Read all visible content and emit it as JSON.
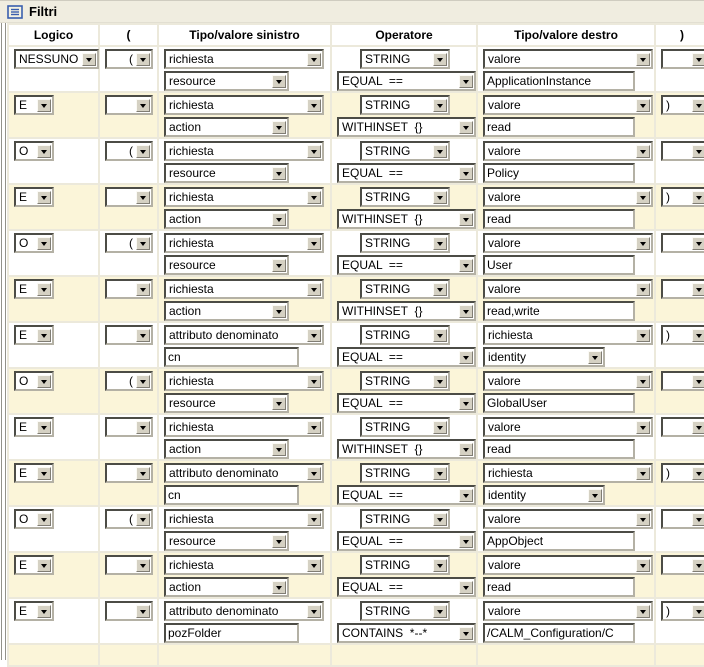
{
  "title": "Filtri",
  "columns": [
    "Logico",
    "(",
    "Tipo/valore sinistro",
    "Operatore",
    "Tipo/valore destro",
    ")"
  ],
  "colors": {
    "row_alternate": "#FBF5D9",
    "titlebar_background": "#F0EDE0",
    "grid_lines": "#ECE9DB",
    "icon_blue": "#3a5fae"
  },
  "icons": {
    "titlebar_icon": "filter-list-icon",
    "dropdown_arrow": "chevron-down-icon"
  },
  "rows": [
    {
      "logico": "NESSUNO",
      "open": "(",
      "left": {
        "type": "richiesta",
        "kind": "dropdown",
        "value": "resource"
      },
      "op": {
        "type": "STRING",
        "operator": "EQUAL  =="
      },
      "right": {
        "type": "valore",
        "kind": "input",
        "value": "ApplicationInstance"
      },
      "close": ""
    },
    {
      "logico": "E",
      "open": "",
      "left": {
        "type": "richiesta",
        "kind": "dropdown",
        "value": "action"
      },
      "op": {
        "type": "STRING",
        "operator": "WITHINSET  {}"
      },
      "right": {
        "type": "valore",
        "kind": "input",
        "value": "read"
      },
      "close": ")"
    },
    {
      "logico": "O",
      "open": "(",
      "left": {
        "type": "richiesta",
        "kind": "dropdown",
        "value": "resource"
      },
      "op": {
        "type": "STRING",
        "operator": "EQUAL  =="
      },
      "right": {
        "type": "valore",
        "kind": "input",
        "value": "Policy"
      },
      "close": ""
    },
    {
      "logico": "E",
      "open": "",
      "left": {
        "type": "richiesta",
        "kind": "dropdown",
        "value": "action"
      },
      "op": {
        "type": "STRING",
        "operator": "WITHINSET  {}"
      },
      "right": {
        "type": "valore",
        "kind": "input",
        "value": "read"
      },
      "close": ")"
    },
    {
      "logico": "O",
      "open": "(",
      "left": {
        "type": "richiesta",
        "kind": "dropdown",
        "value": "resource"
      },
      "op": {
        "type": "STRING",
        "operator": "EQUAL  =="
      },
      "right": {
        "type": "valore",
        "kind": "input",
        "value": "User"
      },
      "close": ""
    },
    {
      "logico": "E",
      "open": "",
      "left": {
        "type": "richiesta",
        "kind": "dropdown",
        "value": "action"
      },
      "op": {
        "type": "STRING",
        "operator": "WITHINSET  {}"
      },
      "right": {
        "type": "valore",
        "kind": "input",
        "value": "read,write"
      },
      "close": ""
    },
    {
      "logico": "E",
      "open": "",
      "left": {
        "type": "attributo denominato",
        "kind": "input",
        "value": "cn"
      },
      "op": {
        "type": "STRING",
        "operator": "EQUAL  =="
      },
      "right": {
        "type": "richiesta",
        "kind": "dropdown",
        "value": "identity"
      },
      "close": ")"
    },
    {
      "logico": "O",
      "open": "(",
      "left": {
        "type": "richiesta",
        "kind": "dropdown",
        "value": "resource"
      },
      "op": {
        "type": "STRING",
        "operator": "EQUAL  =="
      },
      "right": {
        "type": "valore",
        "kind": "input",
        "value": "GlobalUser"
      },
      "close": ""
    },
    {
      "logico": "E",
      "open": "",
      "left": {
        "type": "richiesta",
        "kind": "dropdown",
        "value": "action"
      },
      "op": {
        "type": "STRING",
        "operator": "WITHINSET  {}"
      },
      "right": {
        "type": "valore",
        "kind": "input",
        "value": "read"
      },
      "close": ""
    },
    {
      "logico": "E",
      "open": "",
      "left": {
        "type": "attributo denominato",
        "kind": "input",
        "value": "cn"
      },
      "op": {
        "type": "STRING",
        "operator": "EQUAL  =="
      },
      "right": {
        "type": "richiesta",
        "kind": "dropdown",
        "value": "identity"
      },
      "close": ")"
    },
    {
      "logico": "O",
      "open": "(",
      "left": {
        "type": "richiesta",
        "kind": "dropdown",
        "value": "resource"
      },
      "op": {
        "type": "STRING",
        "operator": "EQUAL  =="
      },
      "right": {
        "type": "valore",
        "kind": "input",
        "value": "AppObject"
      },
      "close": ""
    },
    {
      "logico": "E",
      "open": "",
      "left": {
        "type": "richiesta",
        "kind": "dropdown",
        "value": "action"
      },
      "op": {
        "type": "STRING",
        "operator": "EQUAL  =="
      },
      "right": {
        "type": "valore",
        "kind": "input",
        "value": "read"
      },
      "close": ""
    },
    {
      "logico": "E",
      "open": "",
      "left": {
        "type": "attributo denominato",
        "kind": "input",
        "value": "pozFolder"
      },
      "op": {
        "type": "STRING",
        "operator": "CONTAINS  *--*"
      },
      "right": {
        "type": "valore",
        "kind": "input",
        "value": "/CALM_Configuration/C"
      },
      "close": ")"
    }
  ]
}
